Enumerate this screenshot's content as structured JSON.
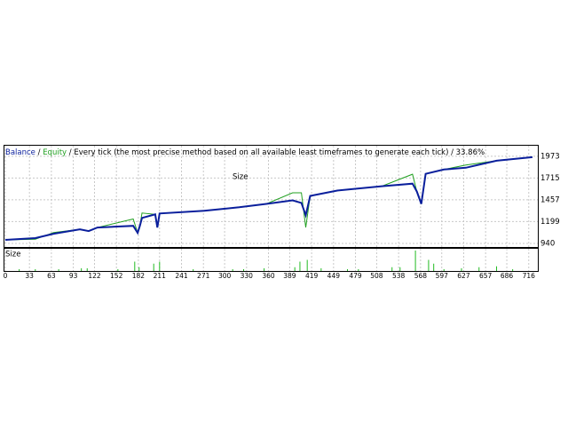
{
  "chart_data": [
    {
      "type": "line",
      "title": "Every tick (the most precise method based on all available least timeframes to generate each tick) / 33.86%",
      "separator": "/",
      "annotation": "Size",
      "x": [
        0,
        41,
        66,
        102,
        114,
        126,
        175,
        181,
        184,
        187,
        205,
        208,
        211,
        272,
        320,
        357,
        393,
        405,
        411,
        417,
        454,
        515,
        557,
        563,
        569,
        575,
        600,
        630,
        672,
        721
      ],
      "series": [
        {
          "name": "Balance",
          "color": "#0a1f9c",
          "values": [
            982,
            1003,
            1055,
            1107,
            1086,
            1128,
            1149,
            1065,
            1149,
            1242,
            1284,
            1128,
            1295,
            1326,
            1368,
            1409,
            1451,
            1420,
            1274,
            1503,
            1566,
            1618,
            1649,
            1555,
            1409,
            1764,
            1816,
            1837,
            1920,
            1962
          ]
        },
        {
          "name": "Equity",
          "color": "#22a022",
          "values": [
            982,
            990,
            1070,
            1107,
            1086,
            1128,
            1230,
            1065,
            1149,
            1300,
            1284,
            1128,
            1295,
            1326,
            1368,
            1409,
            1540,
            1540,
            1130,
            1503,
            1566,
            1618,
            1760,
            1555,
            1409,
            1764,
            1816,
            1870,
            1920,
            1962
          ]
        }
      ],
      "xlim": [
        0,
        726
      ],
      "ylim": [
        898,
        2098
      ],
      "xticks": [
        0,
        33,
        63,
        93,
        122,
        152,
        182,
        211,
        241,
        271,
        300,
        330,
        360,
        389,
        419,
        449,
        479,
        508,
        538,
        568,
        597,
        627,
        657,
        686,
        716
      ],
      "yticks": [
        940,
        1199,
        1457,
        1715,
        1973
      ],
      "grid": true
    },
    {
      "type": "bar",
      "title": "Size",
      "color": "#22bb22",
      "x": [
        19,
        41,
        73,
        104,
        112,
        154,
        177,
        183,
        203,
        211,
        257,
        311,
        326,
        354,
        396,
        403,
        413,
        432,
        468,
        483,
        529,
        540,
        561,
        579,
        586,
        600,
        624,
        648,
        672,
        694
      ],
      "values": [
        0.08,
        0.08,
        0.08,
        0.12,
        0.12,
        0.08,
        0.42,
        0.17,
        0.33,
        0.42,
        0.08,
        0.08,
        0.08,
        0.12,
        0.17,
        0.42,
        0.5,
        0.12,
        0.08,
        0.08,
        0.17,
        0.17,
        0.92,
        0.5,
        0.33,
        0.08,
        0.12,
        0.17,
        0.21,
        0.08
      ],
      "xlim": [
        0,
        726
      ],
      "ylim": [
        0,
        1
      ]
    }
  ]
}
